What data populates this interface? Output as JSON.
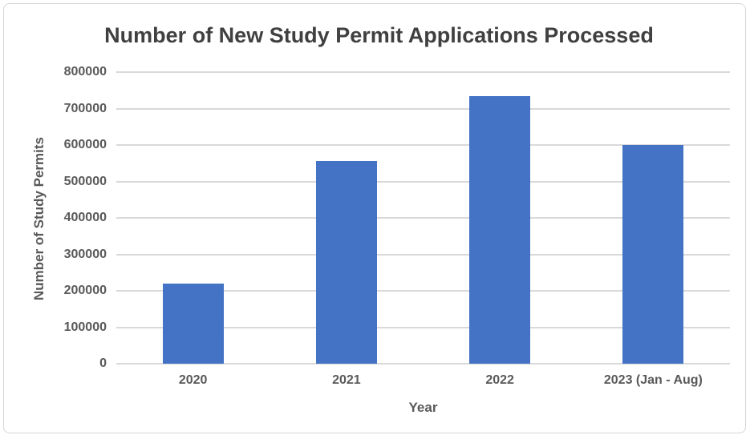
{
  "chart_data": {
    "type": "bar",
    "title": "Number of New Study Permit Applications Processed",
    "xlabel": "Year",
    "ylabel": "Number of Study Permits",
    "categories": [
      "2020",
      "2021",
      "2022",
      "2023 (Jan - Aug)"
    ],
    "values": [
      220000,
      555000,
      735000,
      600000
    ],
    "ylim": [
      0,
      800000
    ],
    "ytick_step": 100000,
    "grid": true,
    "legend": "none",
    "colors": {
      "bar": "#4472C4",
      "gridline": "#d9d9d9",
      "axis_line": "#d9d9d9",
      "tick_label": "#595959",
      "title": "#404040",
      "frame_border": "#d6d6d6",
      "background": "#ffffff"
    }
  }
}
